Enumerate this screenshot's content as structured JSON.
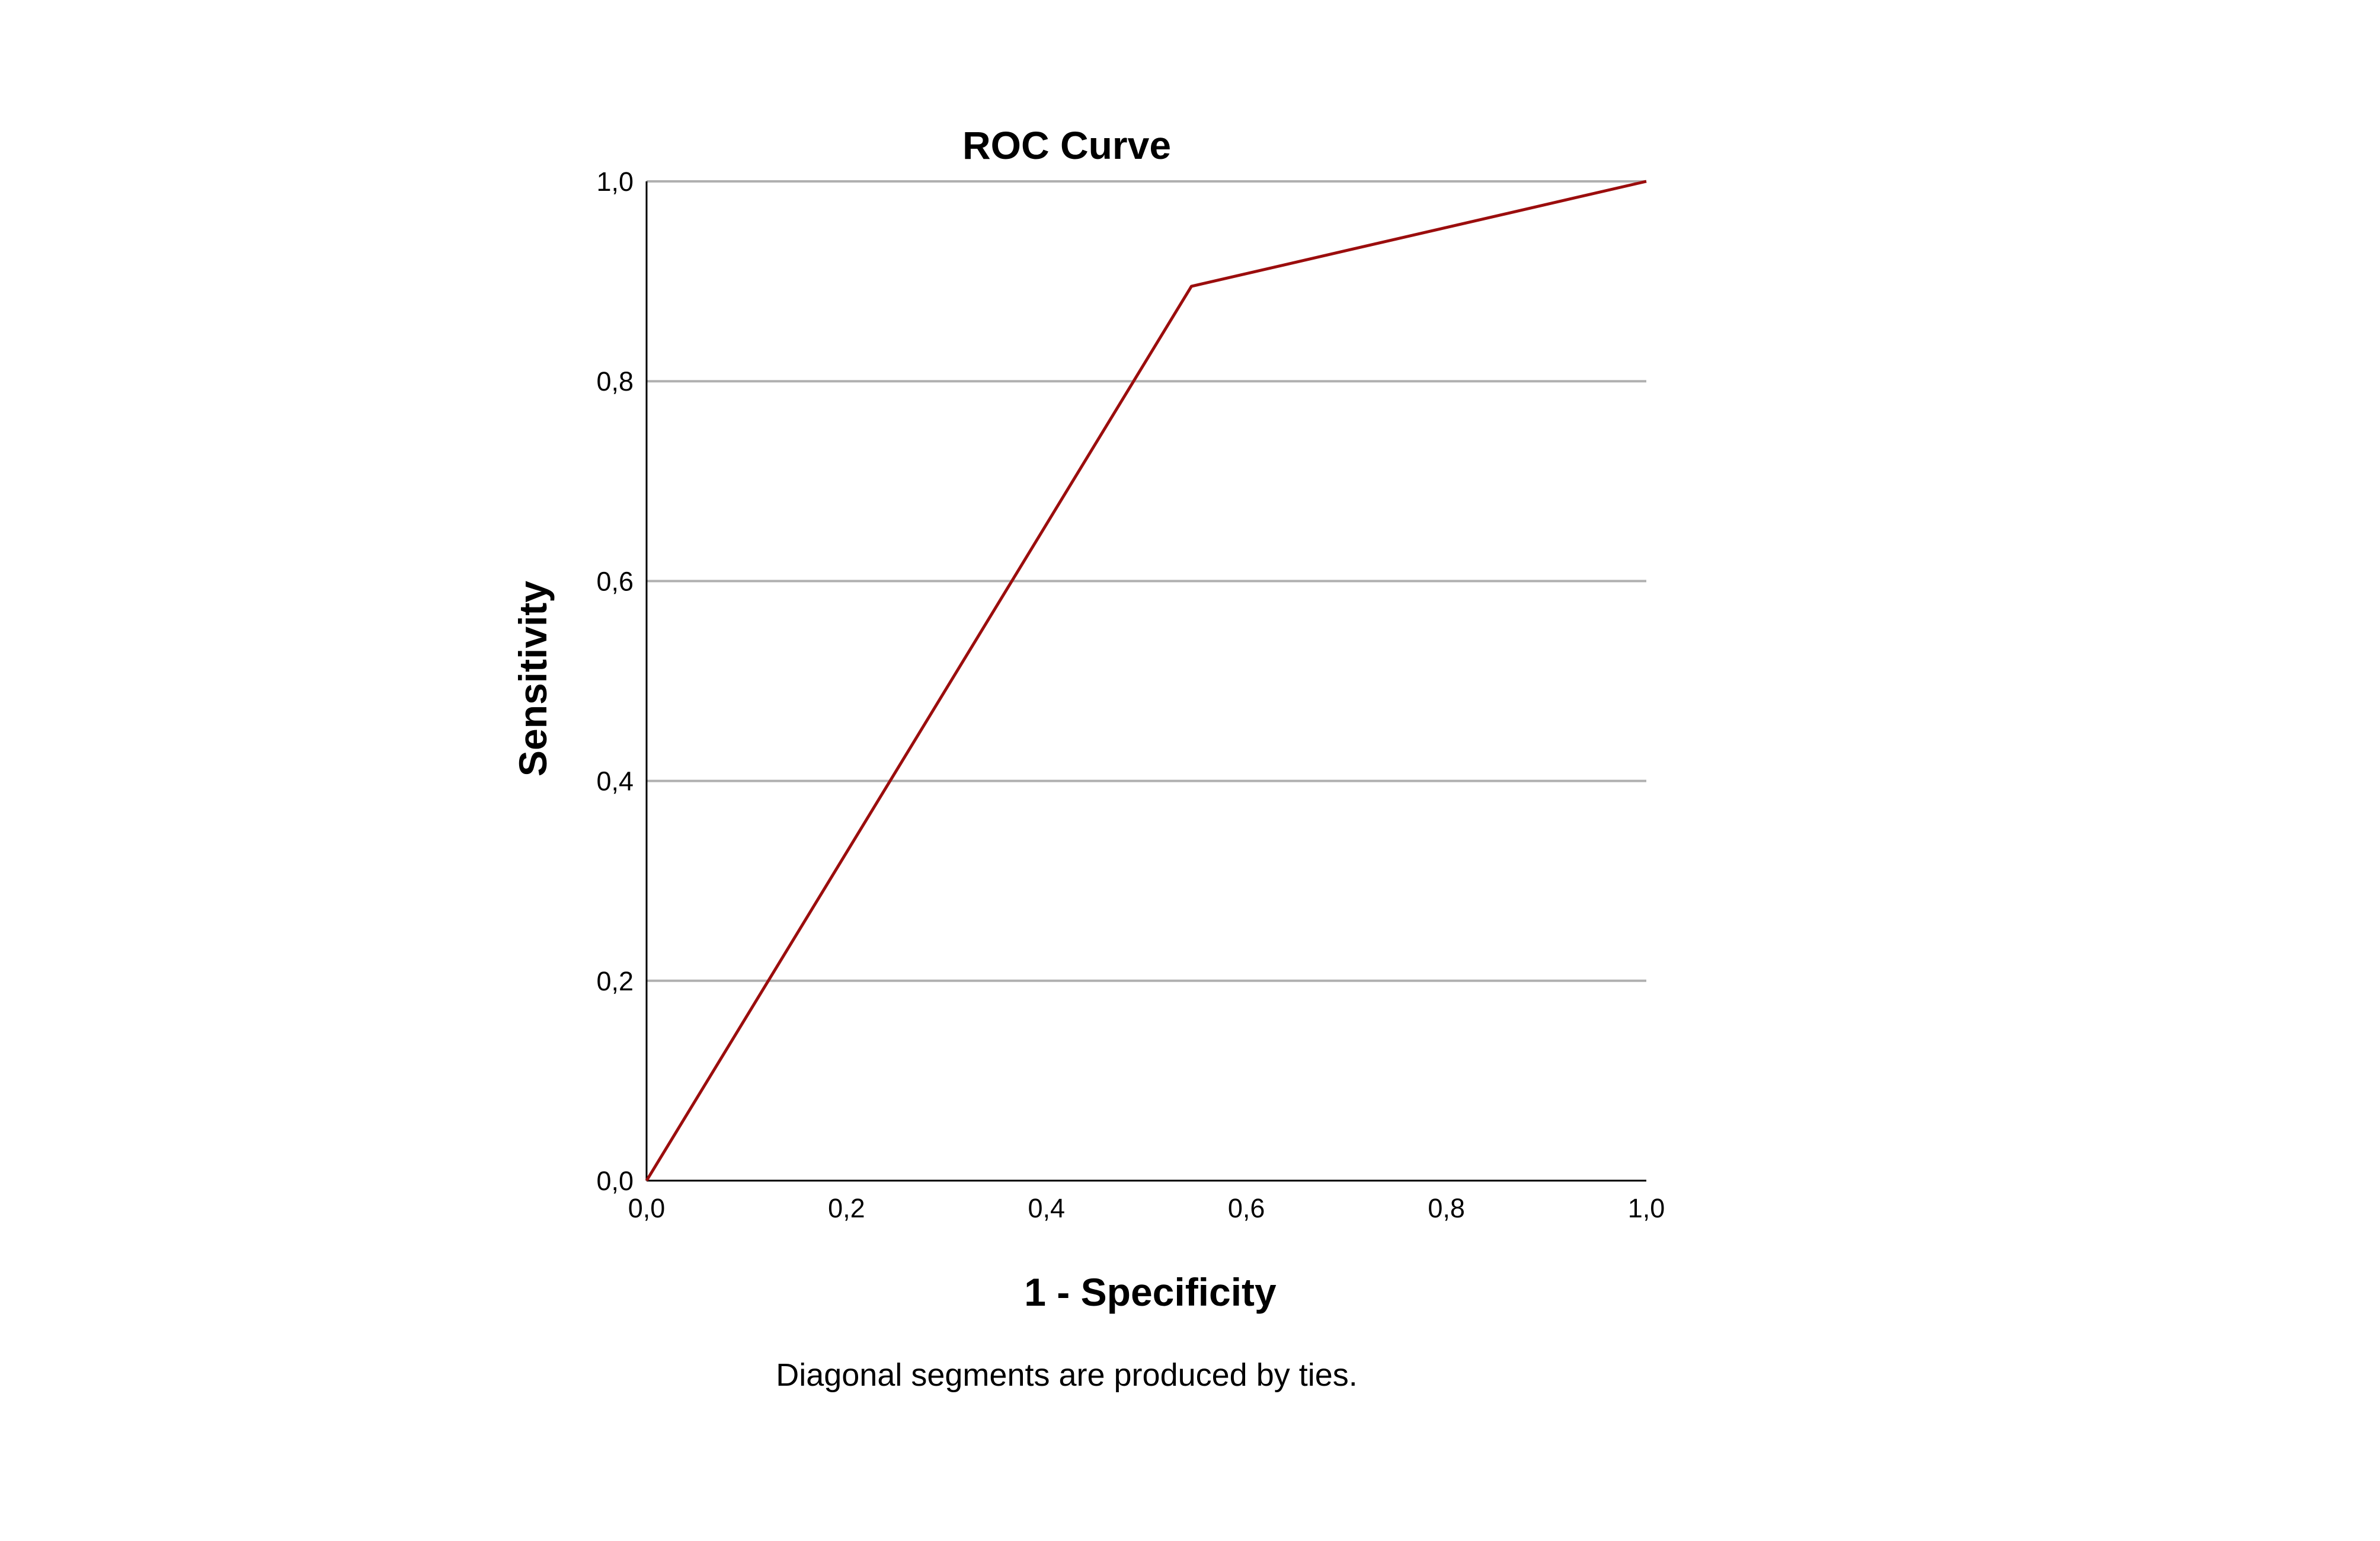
{
  "chart_data": {
    "type": "line",
    "title": "ROC Curve",
    "xlabel": "1 - Specificity",
    "ylabel": "Sensitivity",
    "xlim": [
      0,
      1
    ],
    "ylim": [
      0,
      1
    ],
    "x_ticks": [
      0,
      0.2,
      0.4,
      0.6,
      0.8,
      1.0
    ],
    "y_ticks": [
      0,
      0.2,
      0.4,
      0.6,
      0.8,
      1.0
    ],
    "x_tick_labels": [
      "0,0",
      "0,2",
      "0,4",
      "0,6",
      "0,8",
      "1,0"
    ],
    "y_tick_labels": [
      "0,0",
      "0,2",
      "0,4",
      "0,6",
      "0,8",
      "1,0"
    ],
    "grid": "horizontal",
    "series": [
      {
        "name": "ROC",
        "color": "#9b0d0d",
        "x": [
          0,
          0.545,
          1.0
        ],
        "y": [
          0,
          0.895,
          1.0
        ]
      }
    ],
    "footnote": "Diagonal segments are produced by ties."
  }
}
